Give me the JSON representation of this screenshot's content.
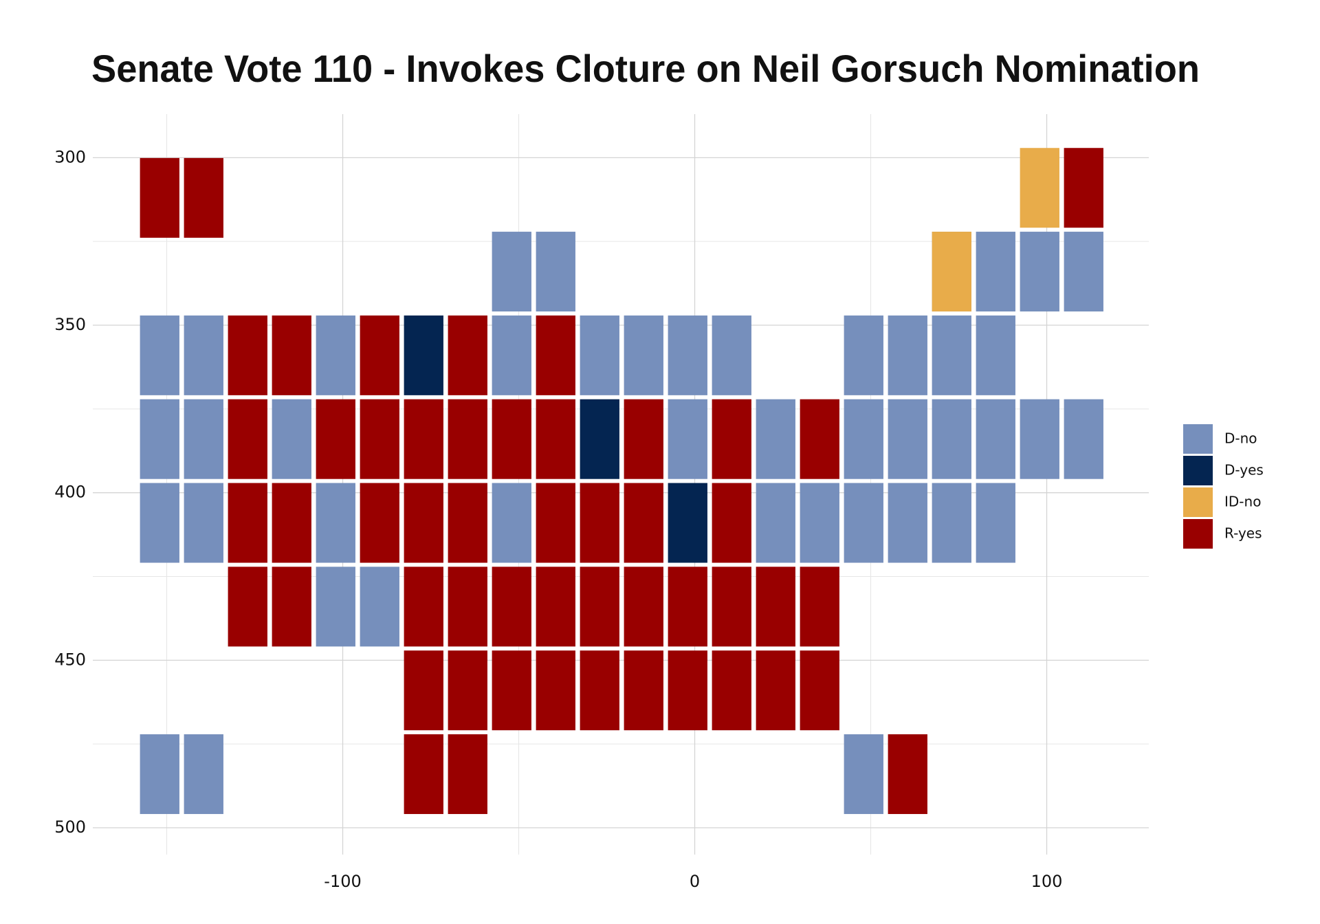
{
  "chart_data": {
    "type": "tile",
    "title": "Senate Vote 110 - Invokes Cloture on Neil Gorsuch Nomination",
    "xlim": [
      -171,
      129
    ],
    "ylim": [
      508,
      287
    ],
    "xticks": [
      -100,
      0,
      100
    ],
    "yticks": [
      300,
      350,
      400,
      450,
      500
    ],
    "xminor": [
      -150,
      -50,
      50
    ],
    "yminor": [
      325,
      375,
      425,
      475
    ],
    "grid": true,
    "legend": "right",
    "series": [
      {
        "name": "D-no",
        "color": "#768fbc",
        "x": [
          -52,
          -39.5,
          73,
          85.5,
          98,
          110.5,
          -152,
          -139.5,
          -102,
          -52,
          -27,
          -14.5,
          -2,
          10.5,
          48,
          60.5,
          73,
          85.5,
          -152,
          -139.5,
          -114.5,
          -2,
          23,
          48,
          60.5,
          73,
          85.5,
          98,
          110.5,
          -152,
          -139.5,
          -102,
          -52,
          23,
          35.5,
          48,
          60.5,
          73,
          85.5,
          -102,
          -89.5,
          -152,
          -139.5,
          48
        ],
        "y": [
          334,
          334,
          334,
          334,
          334,
          334,
          359,
          359,
          359,
          359,
          359,
          359,
          359,
          359,
          359,
          359,
          359,
          359,
          384,
          384,
          384,
          384,
          384,
          384,
          384,
          384,
          384,
          384,
          384,
          409,
          409,
          409,
          409,
          409,
          409,
          409,
          409,
          409,
          409,
          434,
          434,
          484,
          484,
          484
        ]
      },
      {
        "name": "D-yes",
        "color": "#042551",
        "x": [
          -77,
          -27,
          -2
        ],
        "y": [
          359,
          384,
          409
        ]
      },
      {
        "name": "ID-no",
        "color": "#e8ac4a",
        "x": [
          98,
          73
        ],
        "y": [
          309,
          334
        ]
      },
      {
        "name": "R-yes",
        "color": "#990000",
        "x": [
          -152,
          -139.5,
          110.5,
          -127,
          -114.5,
          -89.5,
          -64.5,
          -39.5,
          -127,
          -102,
          -89.5,
          -77,
          -64.5,
          -52,
          -39.5,
          -14.5,
          10.5,
          35.5,
          -127,
          -114.5,
          -89.5,
          -77,
          -64.5,
          -39.5,
          -27,
          -14.5,
          10.5,
          -127,
          -114.5,
          -77,
          -64.5,
          -52,
          -39.5,
          -27,
          -14.5,
          -2,
          10.5,
          23,
          35.5,
          -77,
          -64.5,
          -52,
          -39.5,
          -27,
          -14.5,
          -2,
          10.5,
          23,
          35.5,
          -77,
          -64.5,
          60.5
        ],
        "y": [
          312,
          312,
          309,
          359,
          359,
          359,
          359,
          359,
          384,
          384,
          384,
          384,
          384,
          384,
          384,
          384,
          384,
          384,
          409,
          409,
          409,
          409,
          409,
          409,
          409,
          409,
          409,
          434,
          434,
          434,
          434,
          434,
          434,
          434,
          434,
          434,
          434,
          434,
          434,
          459,
          459,
          459,
          459,
          459,
          459,
          459,
          459,
          459,
          459,
          484,
          484,
          484
        ]
      }
    ]
  }
}
